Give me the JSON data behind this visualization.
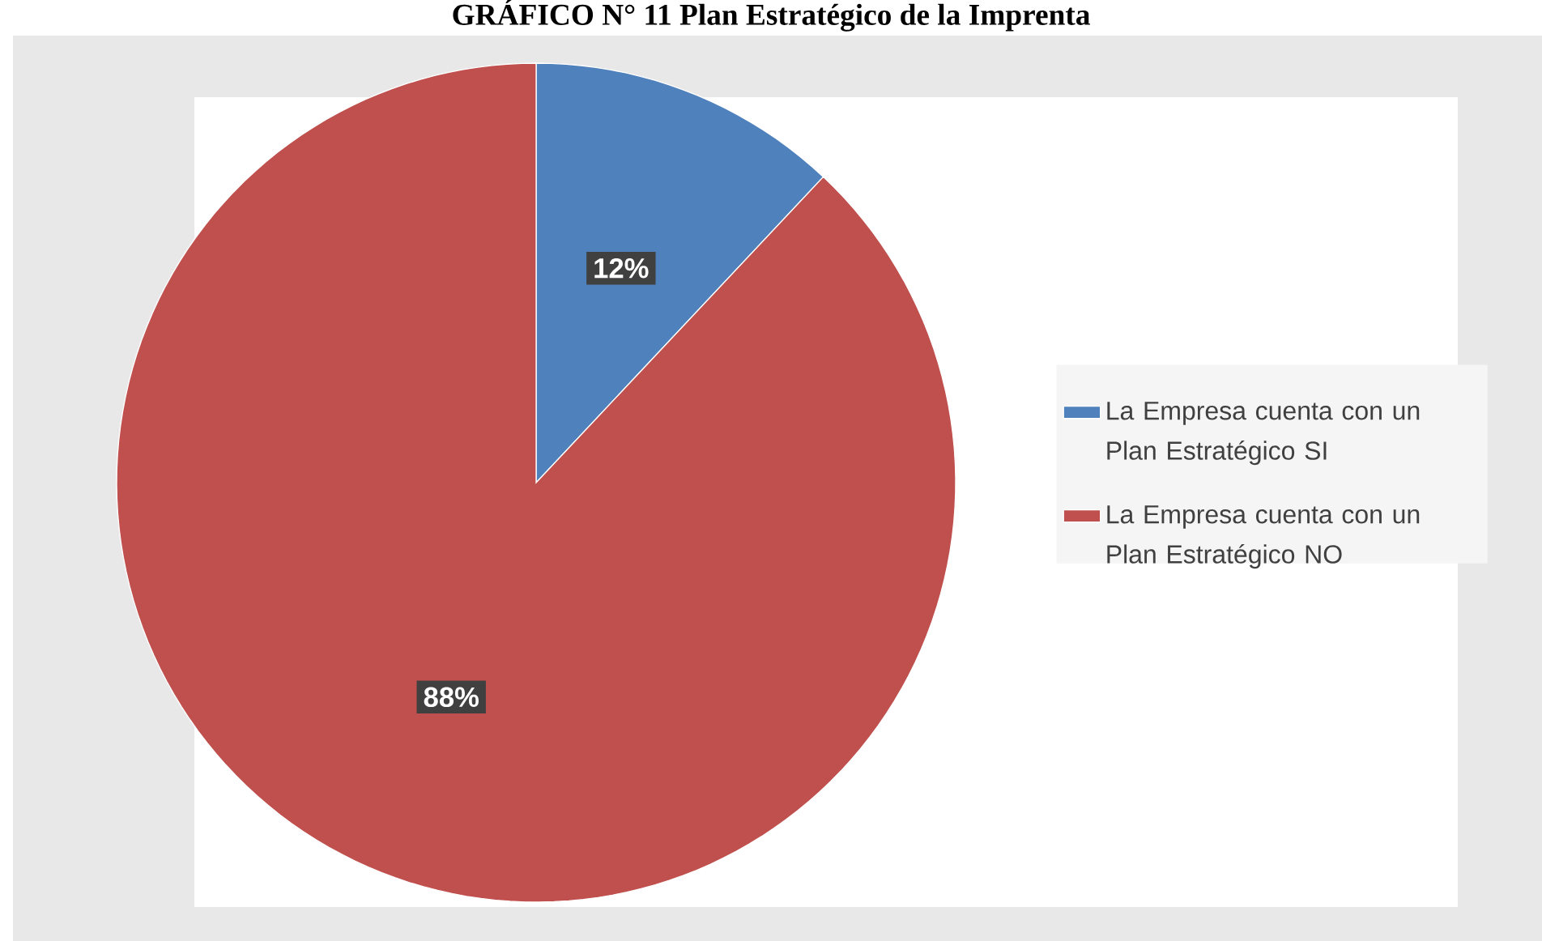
{
  "chart_data": {
    "type": "pie",
    "title": "GRÁFICO N° 11 Plan Estratégico de la Imprenta",
    "categories": [
      "La Empresa cuenta con un Plan Estratégico SI",
      "La Empresa cuenta con un Plan Estratégico NO"
    ],
    "values": [
      12,
      88
    ],
    "colors": [
      "#4f81bd",
      "#c0504d"
    ],
    "value_labels": [
      "12%",
      "88%"
    ],
    "legend": "right"
  }
}
